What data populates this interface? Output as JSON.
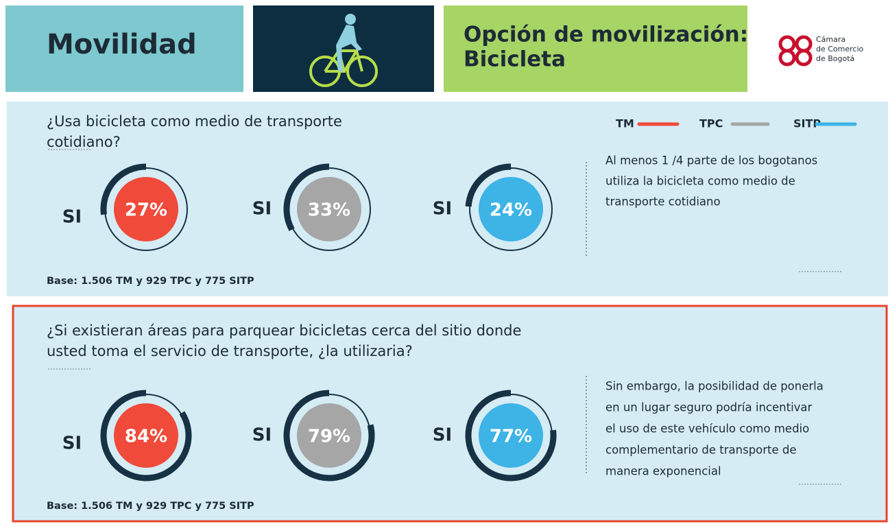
{
  "header": {
    "title": "Movilidad",
    "option_lines": [
      "Opción de movilización:",
      "Bicicleta"
    ]
  },
  "logo": {
    "lines": [
      "Cámara",
      "de Comercio",
      "de Bogotá"
    ]
  },
  "legend": [
    {
      "name": "TM",
      "color": "#f04a3a"
    },
    {
      "name": "TPC",
      "color": "#a6a6a6"
    },
    {
      "name": "SITP",
      "color": "#3db3e6"
    }
  ],
  "sections": [
    {
      "question_lines": [
        "¿Usa bicicleta como medio de transporte",
        "cotidiano?"
      ],
      "items": [
        {
          "label": "SI",
          "value": 27,
          "value_label": "27%"
        },
        {
          "label": "SI",
          "value": 33,
          "value_label": "33%"
        },
        {
          "label": "SI",
          "value": 24,
          "value_label": "24%"
        }
      ],
      "note_lines": [
        "Al menos 1 /4 parte de los bogotanos",
        "utiliza la bicicleta como medio de",
        "transporte cotidiano"
      ],
      "base": "Base: 1.506 TM y 929 TPC y 775 SITP"
    },
    {
      "question_lines": [
        "¿Si existieran áreas para parquear bicicletas cerca del sitio donde",
        "usted toma el servicio de transporte, ¿la utilizaria?"
      ],
      "items": [
        {
          "label": "SI",
          "value": 84,
          "value_label": "84%"
        },
        {
          "label": "SI",
          "value": 79,
          "value_label": "79%"
        },
        {
          "label": "SI",
          "value": 77,
          "value_label": "77%"
        }
      ],
      "note_lines": [
        "Sin embargo, la posibilidad de ponerla",
        "en un lugar seguro podría incentivar",
        "el uso de este vehículo como medio",
        "complementario de transporte de",
        "manera exponencial"
      ],
      "base": "Base: 1.506 TM y 929 TPC y 775 SITP"
    }
  ]
}
